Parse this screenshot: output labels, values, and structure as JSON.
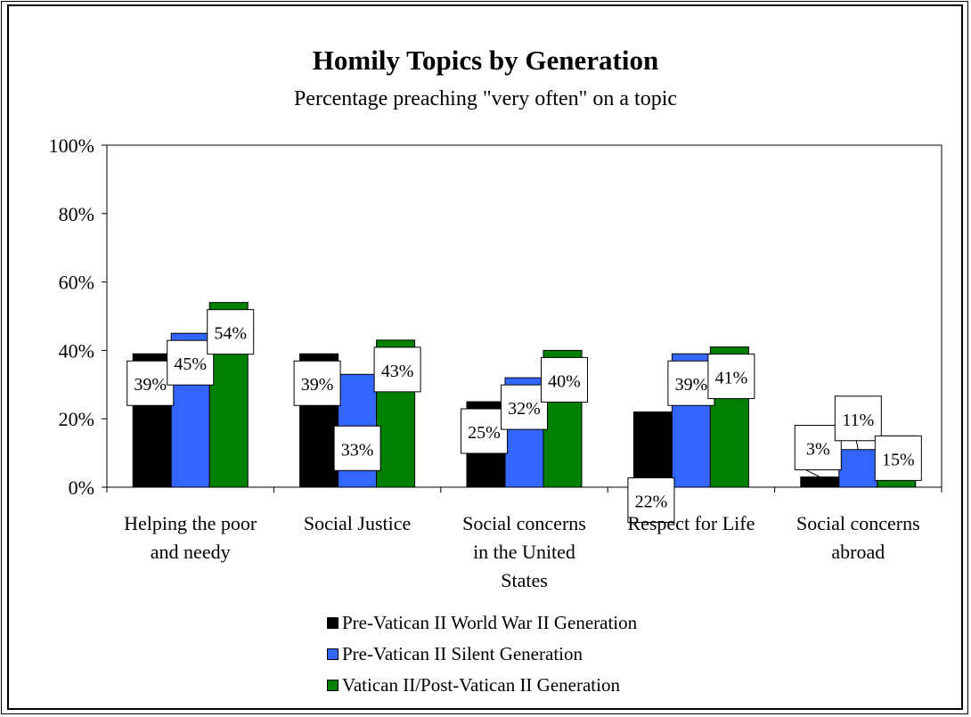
{
  "colors": {
    "series": [
      "#000000",
      "#3366ff",
      "#008000"
    ]
  },
  "chart_data": {
    "type": "bar",
    "title": "Homily Topics by Generation",
    "subtitle": "Percentage preaching \"very often\" on a topic",
    "categories": [
      [
        "Helping the poor",
        "and needy"
      ],
      [
        "Social Justice"
      ],
      [
        "Social concerns",
        "in the United",
        "States"
      ],
      [
        "Respect for Life"
      ],
      [
        "Social concerns",
        "abroad"
      ]
    ],
    "series": [
      {
        "name": "Pre-Vatican II World War II Generation",
        "values": [
          39,
          39,
          25,
          22,
          3
        ],
        "labels": [
          "39%",
          "39%",
          "25%",
          "22%",
          "3%"
        ]
      },
      {
        "name": "Pre-Vatican II Silent Generation",
        "values": [
          45,
          33,
          32,
          39,
          11
        ],
        "labels": [
          "45%",
          "33%",
          "32%",
          "39%",
          "11%"
        ]
      },
      {
        "name": "Vatican II/Post-Vatican II Generation",
        "values": [
          54,
          43,
          40,
          41,
          15
        ],
        "labels": [
          "54%",
          "43%",
          "40%",
          "41%",
          "15%"
        ]
      }
    ],
    "ylim": [
      0,
      100
    ],
    "yticks": [
      "0%",
      "20%",
      "40%",
      "60%",
      "80%",
      "100%"
    ],
    "legend_position": "bottom"
  }
}
